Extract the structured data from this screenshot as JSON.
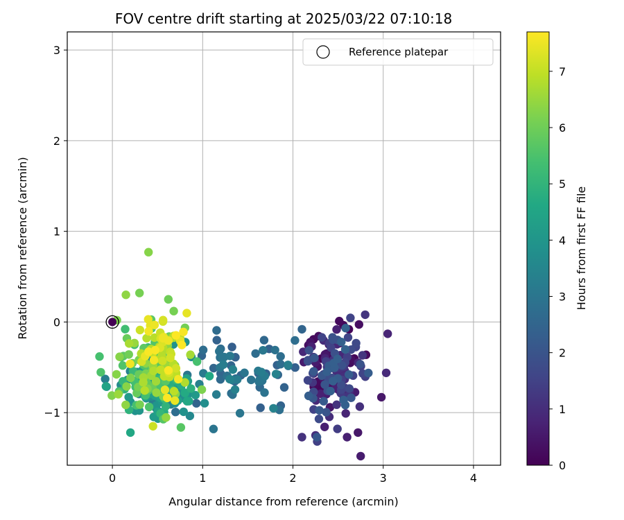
{
  "chart_data": {
    "type": "scatter",
    "title": "FOV centre drift starting at 2025/03/22 07:10:18",
    "xlabel": "Angular distance from reference (arcmin)",
    "ylabel": "Rotation from reference (arcmin)",
    "xlim": [
      -0.5,
      4.3
    ],
    "ylim": [
      -1.58,
      3.2
    ],
    "xticks": [
      0,
      1,
      2,
      3,
      4
    ],
    "yticks": [
      -1,
      0,
      1,
      2,
      3
    ],
    "grid": true,
    "legend": {
      "placement": "top-right",
      "entries": [
        "Reference platepar"
      ]
    },
    "colorbar": {
      "label": "Hours from first FF file",
      "min": 0,
      "max": 7.7,
      "ticks": [
        0,
        1,
        2,
        3,
        4,
        5,
        6,
        7
      ],
      "colormap": "viridis"
    },
    "reference_point": {
      "x": 0,
      "y": 0
    },
    "series": [
      {
        "kind": "clusters",
        "groups": [
          {
            "cx": 2.45,
            "cy": -0.55,
            "sx": 0.17,
            "sy": 0.25,
            "n": 150,
            "h_min": 0.0,
            "h_max": 2.4
          },
          {
            "cx": 1.45,
            "cy": -0.55,
            "sx": 0.35,
            "sy": 0.2,
            "n": 65,
            "h_min": 2.3,
            "h_max": 3.4
          },
          {
            "cx": 0.55,
            "cy": -0.7,
            "sx": 0.22,
            "sy": 0.18,
            "n": 150,
            "h_min": 3.2,
            "h_max": 5.2
          },
          {
            "cx": 0.45,
            "cy": -0.5,
            "sx": 0.2,
            "sy": 0.25,
            "n": 110,
            "h_min": 5.0,
            "h_max": 6.8
          },
          {
            "cx": 0.55,
            "cy": -0.4,
            "sx": 0.16,
            "sy": 0.22,
            "n": 55,
            "h_min": 6.8,
            "h_max": 7.7
          }
        ]
      },
      {
        "kind": "points",
        "values": [
          [
            0.4,
            0.77,
            6.3
          ],
          [
            0.2,
            -1.22,
            4.6
          ],
          [
            0.3,
            0.32,
            6.1
          ],
          [
            2.8,
            0.08,
            1.2
          ],
          [
            2.75,
            -1.48,
            0.6
          ],
          [
            2.98,
            -0.83,
            0.5
          ],
          [
            3.05,
            -0.13,
            0.8
          ],
          [
            2.6,
            -1.27,
            0.7
          ],
          [
            2.1,
            -1.27,
            1.1
          ],
          [
            2.25,
            -1.25,
            1.0
          ],
          [
            1.12,
            -1.18,
            3.0
          ],
          [
            1.68,
            -0.2,
            2.6
          ],
          [
            0.45,
            -1.15,
            7.1
          ],
          [
            0.05,
            0.02,
            6.2
          ],
          [
            0.62,
            0.25,
            6.0
          ],
          [
            0.68,
            0.12,
            6.1
          ],
          [
            0.15,
            0.3,
            6.4
          ],
          [
            2.1,
            -0.08,
            2.5
          ],
          [
            1.85,
            -0.97,
            2.8
          ],
          [
            2.72,
            -1.22,
            0.5
          ]
        ]
      }
    ]
  }
}
